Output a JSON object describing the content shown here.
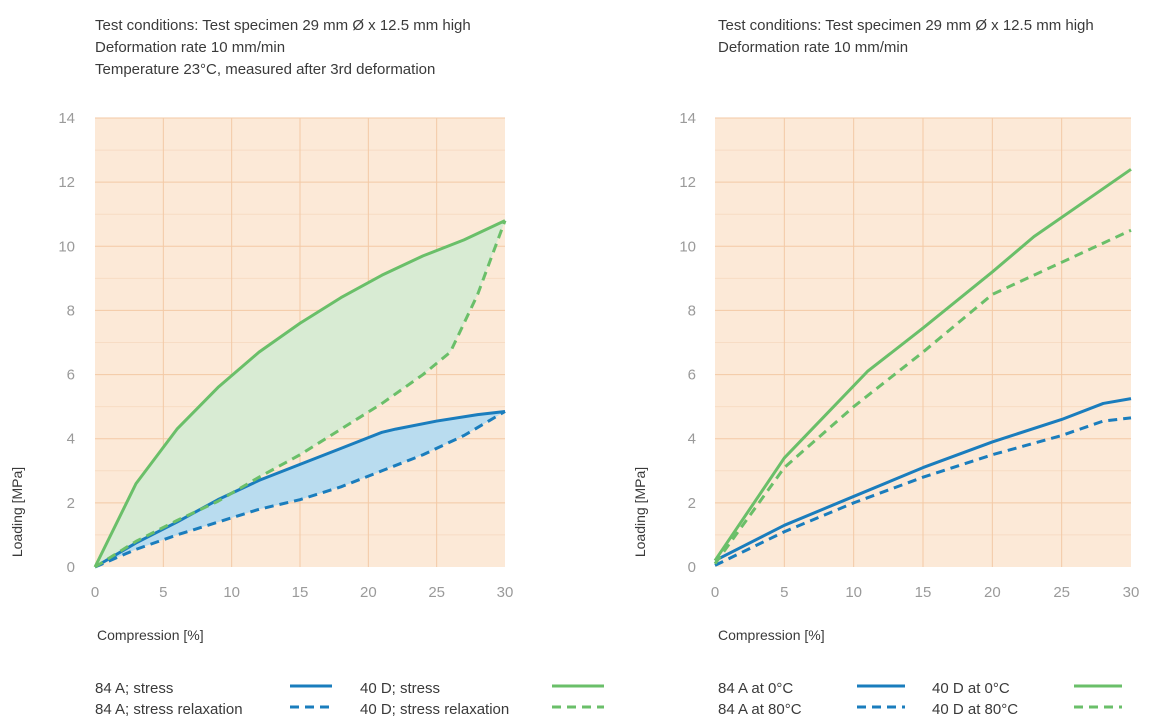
{
  "colors": {
    "plot_bg": "#fce9d7",
    "grid_major": "#f3c9a5",
    "grid_minor": "#f7dcc4",
    "blue": "#1a7dbd",
    "green": "#6abf69",
    "fill_blue": "#b9dcef",
    "fill_green": "#d8ebd3"
  },
  "chart_data": [
    {
      "type": "line",
      "conditions": [
        "Test conditions: Test specimen 29 mm Ø x 12.5 mm high",
        "Deformation rate 10 mm/min",
        "Temperature 23°C, measured after 3rd deformation"
      ],
      "xlabel": "Compression [%]",
      "ylabel": "Loading [MPa]",
      "xlim": [
        0,
        30
      ],
      "ylim": [
        0,
        14
      ],
      "xticks": [
        "0",
        "5",
        "10",
        "15",
        "20",
        "25",
        "30"
      ],
      "yticks": [
        "0",
        "2",
        "4",
        "6",
        "8",
        "10",
        "12",
        "14"
      ],
      "grid": true,
      "shaded_between": [
        [
          0,
          1
        ],
        [
          2,
          3
        ]
      ],
      "series": [
        {
          "name": "84 A; stress",
          "color": "blue",
          "dashed": false,
          "x": [
            0,
            3,
            6,
            9,
            12,
            15,
            18,
            21,
            22,
            25,
            28,
            30
          ],
          "y": [
            0,
            0.75,
            1.4,
            2.1,
            2.7,
            3.2,
            3.7,
            4.2,
            4.3,
            4.55,
            4.75,
            4.85
          ]
        },
        {
          "name": "84 A; stress relaxation",
          "color": "blue",
          "dashed": true,
          "x": [
            0,
            3,
            6,
            9,
            12,
            15,
            18,
            21,
            24,
            27,
            30
          ],
          "y": [
            0,
            0.55,
            1.0,
            1.4,
            1.8,
            2.1,
            2.5,
            3.0,
            3.5,
            4.1,
            4.85
          ]
        },
        {
          "name": "40 D; stress",
          "color": "green",
          "dashed": false,
          "x": [
            0,
            3,
            6,
            9,
            12,
            15,
            18,
            21,
            24,
            27,
            30
          ],
          "y": [
            0,
            2.6,
            4.3,
            5.6,
            6.7,
            7.6,
            8.4,
            9.1,
            9.7,
            10.2,
            10.8
          ]
        },
        {
          "name": "40 D; stress relaxation",
          "color": "green",
          "dashed": true,
          "x": [
            0,
            3,
            6,
            9,
            12,
            15,
            18,
            21,
            24,
            26,
            28,
            30
          ],
          "y": [
            0,
            0.8,
            1.45,
            2.05,
            2.8,
            3.5,
            4.3,
            5.1,
            6.0,
            6.7,
            8.5,
            10.8
          ]
        }
      ],
      "legend": {
        "placement": "bottom",
        "columns": 2
      }
    },
    {
      "type": "line",
      "conditions": [
        "Test conditions: Test specimen 29 mm Ø x 12.5 mm high",
        "Deformation rate 10 mm/min"
      ],
      "xlabel": "Compression [%]",
      "ylabel": "Loading [MPa]",
      "xlim": [
        0,
        30
      ],
      "ylim": [
        0,
        14
      ],
      "xticks": [
        "0",
        "5",
        "10",
        "15",
        "20",
        "25",
        "30"
      ],
      "yticks": [
        "0",
        "2",
        "4",
        "6",
        "8",
        "10",
        "12",
        "14"
      ],
      "grid": true,
      "shaded_between": [],
      "series": [
        {
          "name": "84 A at 0°C",
          "color": "blue",
          "dashed": false,
          "x": [
            0,
            5,
            10,
            15,
            20,
            25,
            28,
            30
          ],
          "y": [
            0.2,
            1.3,
            2.2,
            3.1,
            3.9,
            4.6,
            5.1,
            5.25
          ]
        },
        {
          "name": "84 A at 80°C",
          "color": "blue",
          "dashed": true,
          "x": [
            0,
            5,
            10,
            15,
            20,
            25,
            28,
            30
          ],
          "y": [
            0.05,
            1.1,
            2.0,
            2.8,
            3.5,
            4.1,
            4.55,
            4.65
          ]
        },
        {
          "name": "40 D at 0°C",
          "color": "green",
          "dashed": false,
          "x": [
            0,
            5,
            11,
            15,
            20,
            23,
            27,
            30
          ],
          "y": [
            0.2,
            3.4,
            6.1,
            7.45,
            9.2,
            10.3,
            11.5,
            12.4
          ]
        },
        {
          "name": "40 D at 80°C",
          "color": "green",
          "dashed": true,
          "x": [
            0,
            5,
            10,
            15,
            20,
            25,
            28,
            30
          ],
          "y": [
            0.1,
            3.1,
            5.0,
            6.7,
            8.5,
            9.5,
            10.1,
            10.5
          ]
        }
      ],
      "legend": {
        "placement": "bottom",
        "columns": 2
      }
    }
  ]
}
